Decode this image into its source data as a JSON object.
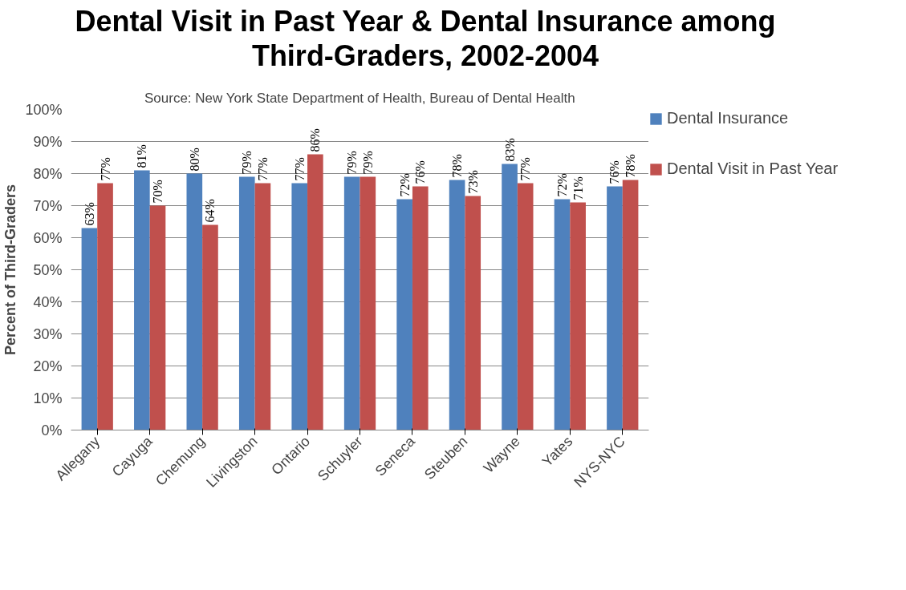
{
  "chart_data": {
    "type": "bar",
    "title": "Dental Visit in Past Year & Dental Insurance among Third-Graders, 2002-2004",
    "annotations": [
      "Source: New York State Department of Health, Bureau of Dental Health"
    ],
    "ylabel": "Percent of Third-Graders",
    "categories": [
      "Allegany",
      "Cayuga",
      "Chemung",
      "Livingston",
      "Ontario",
      "Schuyler",
      "Seneca",
      "Steuben",
      "Wayne",
      "Yates",
      "NYS-NYC"
    ],
    "series": [
      {
        "name": "Dental Insurance",
        "color": "#4f81bd",
        "values": [
          63,
          81,
          80,
          79,
          77,
          79,
          72,
          78,
          83,
          72,
          76
        ],
        "value_labels": [
          "63%",
          "81%",
          "80%",
          "79%",
          "77%",
          "79%",
          "72%",
          "78%",
          "83%",
          "72%",
          "76%"
        ]
      },
      {
        "name": "Dental Visit in Past Year",
        "color": "#c0504d",
        "values": [
          77,
          70,
          64,
          77,
          86,
          79,
          76,
          73,
          77,
          71,
          78
        ],
        "value_labels": [
          "77%",
          "70%",
          "64%",
          "77%",
          "86%",
          "79%",
          "76%",
          "73%",
          "77%",
          "71%",
          "78%"
        ]
      }
    ],
    "ylim": [
      0,
      100
    ],
    "yticks": [
      {
        "value": 0,
        "label": "0%"
      },
      {
        "value": 10,
        "label": "10%"
      },
      {
        "value": 20,
        "label": "20%"
      },
      {
        "value": 30,
        "label": "30%"
      },
      {
        "value": 40,
        "label": "40%"
      },
      {
        "value": 50,
        "label": "50%"
      },
      {
        "value": 60,
        "label": "60%"
      },
      {
        "value": 70,
        "label": "70%"
      },
      {
        "value": 80,
        "label": "80%"
      },
      {
        "value": 90,
        "label": "90%"
      },
      {
        "value": 100,
        "label": "100%"
      }
    ],
    "grid": "y",
    "legend": "right"
  }
}
